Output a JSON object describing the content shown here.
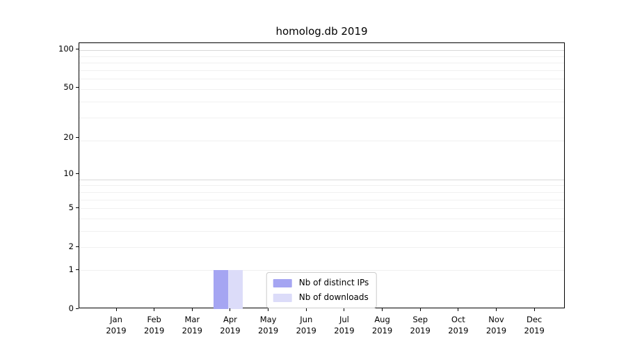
{
  "chart_data": {
    "type": "bar",
    "title": "homolog.db 2019",
    "xlabel": "",
    "ylabel": "",
    "categories": [
      "Jan",
      "Feb",
      "Mar",
      "Apr",
      "May",
      "Jun",
      "Jul",
      "Aug",
      "Sep",
      "Oct",
      "Nov",
      "Dec"
    ],
    "x_year_label": "2019",
    "series": [
      {
        "name": "Nb of distinct IPs",
        "color": "#a5a5f2",
        "values": [
          0,
          0,
          0,
          1,
          0,
          0,
          0,
          0,
          0,
          0,
          0,
          0
        ]
      },
      {
        "name": "Nb of downloads",
        "color": "#dcdcf9",
        "values": [
          0,
          0,
          0,
          1,
          0,
          0,
          0,
          0,
          0,
          0,
          0,
          0
        ]
      }
    ],
    "yscale": "log1p",
    "ylim": [
      0,
      113
    ],
    "ytick_values": [
      0,
      1,
      2,
      5,
      10,
      20,
      50,
      100
    ],
    "grid": {
      "on": true,
      "axis": "y",
      "minor_values": [
        1,
        2,
        3,
        4,
        5,
        6,
        7,
        8,
        19,
        29,
        39,
        49,
        59,
        69,
        79,
        89
      ],
      "major_values": [
        9,
        99
      ]
    },
    "legend": {
      "position": "lower center",
      "entries": [
        "Nb of distinct IPs",
        "Nb of downloads"
      ]
    }
  },
  "colors": {
    "background": "#ffffff",
    "text": "#000000",
    "spine": "#000000",
    "grid_major": "#d8d8d8",
    "grid_minor": "#f0f0f0",
    "legend_border": "#cccccc"
  }
}
